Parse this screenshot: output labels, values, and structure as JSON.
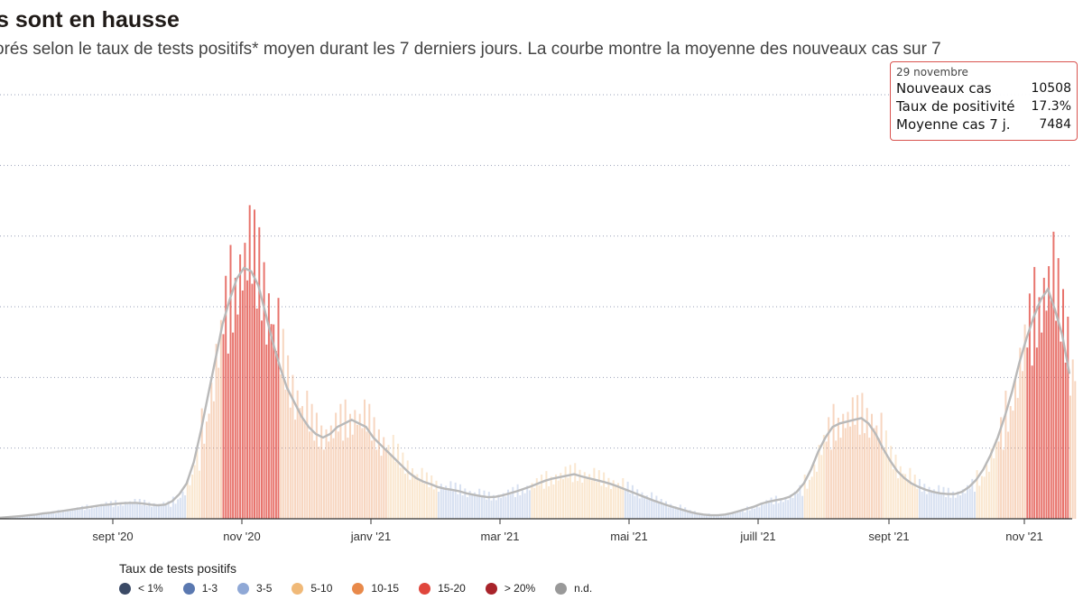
{
  "title": "s sont en hausse",
  "subtitle": "orés selon le taux de tests positifs* moyen durant les 7 derniers jours. La courbe montre la moyenne des nouveaux cas sur 7",
  "tooltip": {
    "date": "29 novembre",
    "rows": [
      {
        "label": "Nouveaux cas",
        "value": "10508"
      },
      {
        "label": "Taux de positivité",
        "value": "17.3%"
      },
      {
        "label": "Moyenne cas 7 j.",
        "value": "7484"
      }
    ]
  },
  "legend": {
    "title": "Taux de tests positifs",
    "items": [
      {
        "label": "< 1%",
        "color": "#3b4a66"
      },
      {
        "label": "1-3",
        "color": "#5a78b0"
      },
      {
        "label": "3-5",
        "color": "#8fa8d6"
      },
      {
        "label": "5-10",
        "color": "#f0b978"
      },
      {
        "label": "10-15",
        "color": "#e8894a"
      },
      {
        "label": "15-20",
        "color": "#e0463c"
      },
      {
        "label": "> 20%",
        "color": "#a8232a"
      },
      {
        "label": "n.d.",
        "color": "#999999"
      }
    ]
  },
  "chart_data": {
    "type": "bar",
    "x_tick_labels": [
      "sept '20",
      "nov '20",
      "janv '21",
      "mar '21",
      "mai '21",
      "juill '21",
      "sept '21",
      "nov '21"
    ],
    "grid": true,
    "ylim": [
      0,
      12000
    ],
    "series": [
      {
        "values": [
          30,
          45,
          60,
          80,
          100,
          120,
          150,
          170,
          200,
          230,
          260,
          290,
          320,
          350,
          380,
          400,
          420,
          440,
          450,
          450,
          430,
          400,
          380,
          400,
          500,
          700,
          1000,
          1600,
          2500,
          3500,
          4500,
          5500,
          6200,
          6800,
          7100,
          7000,
          6600,
          5800,
          5000,
          4300,
          3700,
          3300,
          2900,
          2600,
          2400,
          2300,
          2400,
          2600,
          2700,
          2800,
          2700,
          2600,
          2300,
          2100,
          1900,
          1700,
          1500,
          1300,
          1150,
          1050,
          980,
          900,
          850,
          820,
          780,
          720,
          680,
          640,
          610,
          620,
          660,
          720,
          780,
          850,
          920,
          1000,
          1080,
          1140,
          1180,
          1220,
          1260,
          1200,
          1150,
          1100,
          1050,
          990,
          920,
          840,
          760,
          680,
          600,
          520,
          450,
          380,
          320,
          260,
          200,
          150,
          120,
          100,
          100,
          120,
          160,
          220,
          280,
          340,
          420,
          480,
          520,
          560,
          620,
          760,
          1000,
          1400,
          1900,
          2300,
          2600,
          2700,
          2750,
          2800,
          2850,
          2700,
          2400,
          2000,
          1650,
          1350,
          1150,
          1000,
          900,
          820,
          760,
          720,
          700,
          700,
          760,
          900,
          1100,
          1400,
          1800,
          2300,
          2900,
          3600,
          4400,
          5100,
          5700,
          6200,
          6500,
          5900,
          5200,
          4100
        ]
      }
    ],
    "tooltip_point": {
      "date": "29 novembre",
      "new_cases": 10508,
      "positivity_pct": 17.3,
      "avg_7d": 7484
    }
  }
}
